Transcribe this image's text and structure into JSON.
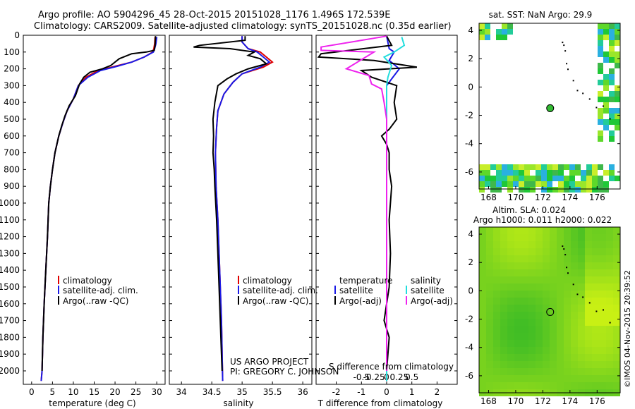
{
  "header": {
    "title_line1": "Argo profile: AO 5904296_45 28-Oct-2015 20151028_1176 1.496S 172.539E",
    "title_line2": "Climatology: CARS2009. Satellite-adjusted climatology: synTS_20151028.nc (0.35d earlier)"
  },
  "colors": {
    "climatology": "#e00000",
    "satellite": "#1a1ae6",
    "argo": "#000000",
    "sal_satellite": "#22dddd",
    "sal_argo": "#ee22ee"
  },
  "chart_data": [
    {
      "type": "line",
      "id": "temperature",
      "xlabel": "temperature (deg C)",
      "ylabel": "",
      "xlim": [
        -2,
        32
      ],
      "ylim": [
        2080,
        0
      ],
      "xticks": [
        0,
        5,
        10,
        15,
        20,
        25,
        30
      ],
      "xtick_labels": [
        "0",
        "5",
        "10",
        "15",
        "20",
        "25",
        "30"
      ],
      "yticks": [
        0,
        100,
        200,
        300,
        400,
        500,
        600,
        700,
        800,
        900,
        1000,
        1100,
        1200,
        1300,
        1400,
        1500,
        1600,
        1700,
        1800,
        1900,
        2000
      ],
      "ytick_labels": [
        "0",
        "100",
        "200",
        "300",
        "400",
        "500",
        "600",
        "700",
        "800",
        "900",
        "1000",
        "1100",
        "1200",
        "1300",
        "1400",
        "1500",
        "1600",
        "1700",
        "1800",
        "1900",
        "2000"
      ],
      "legend": [
        "climatology",
        "satellite-adj. clim.",
        "Argo(..raw -QC)"
      ],
      "legend_position": "lower-left",
      "series": [
        {
          "name": "climatology",
          "color_key": "climatology",
          "points": [
            [
              29.6,
              10
            ],
            [
              29.5,
              50
            ],
            [
              29.3,
              80
            ],
            [
              29.0,
              100
            ],
            [
              27,
              130
            ],
            [
              24,
              160
            ],
            [
              20,
              185
            ],
            [
              16,
              210
            ],
            [
              13,
              250
            ],
            [
              11.2,
              300
            ],
            [
              10,
              380
            ],
            [
              8.5,
              450
            ],
            [
              7.5,
              520
            ],
            [
              6.5,
              600
            ],
            [
              5.6,
              700
            ],
            [
              5,
              800
            ],
            [
              4.5,
              900
            ],
            [
              4.1,
              1000
            ],
            [
              3.8,
              1200
            ],
            [
              3.4,
              1400
            ],
            [
              3,
              1600
            ],
            [
              2.7,
              1800
            ],
            [
              2.5,
              2000
            ],
            [
              2.3,
              2060
            ]
          ]
        },
        {
          "name": "satellite-adj. clim.",
          "color_key": "satellite",
          "points": [
            [
              30.0,
              10
            ],
            [
              29.8,
              50
            ],
            [
              29.5,
              80
            ],
            [
              29.2,
              100
            ],
            [
              27,
              130
            ],
            [
              24,
              160
            ],
            [
              20.5,
              185
            ],
            [
              16.5,
              210
            ],
            [
              13.5,
              250
            ],
            [
              11.2,
              300
            ],
            [
              10,
              380
            ],
            [
              8.5,
              450
            ],
            [
              7.5,
              520
            ],
            [
              6.5,
              600
            ],
            [
              5.6,
              700
            ],
            [
              5,
              800
            ],
            [
              4.5,
              900
            ],
            [
              4.1,
              1000
            ],
            [
              3.8,
              1200
            ],
            [
              3.4,
              1400
            ],
            [
              3,
              1600
            ],
            [
              2.7,
              1800
            ],
            [
              2.5,
              2000
            ],
            [
              2.3,
              2060
            ]
          ]
        },
        {
          "name": "Argo(..raw -QC)",
          "color_key": "argo",
          "points": [
            [
              29.7,
              5
            ],
            [
              29.6,
              60
            ],
            [
              29.4,
              90
            ],
            [
              27.5,
              100
            ],
            [
              24,
              110
            ],
            [
              21,
              140
            ],
            [
              19,
              180
            ],
            [
              17,
              200
            ],
            [
              14,
              220
            ],
            [
              12.5,
              250
            ],
            [
              11.5,
              290
            ],
            [
              10.5,
              360
            ],
            [
              9,
              420
            ],
            [
              8,
              480
            ],
            [
              7.2,
              540
            ],
            [
              6.5,
              600
            ],
            [
              5.6,
              700
            ],
            [
              5,
              800
            ],
            [
              4.5,
              900
            ],
            [
              4.1,
              1000
            ],
            [
              3.8,
              1200
            ],
            [
              3.4,
              1400
            ],
            [
              3,
              1600
            ],
            [
              2.7,
              1800
            ],
            [
              2.5,
              2000
            ]
          ]
        }
      ]
    },
    {
      "type": "line",
      "id": "salinity",
      "xlabel": "salinity",
      "xlim": [
        33.8,
        36.15
      ],
      "ylim": [
        2080,
        0
      ],
      "xticks": [
        34,
        34.5,
        35,
        35.5,
        36
      ],
      "xtick_labels": [
        "34",
        "34.5",
        "35",
        "35.5",
        "36"
      ],
      "legend": [
        "climatology",
        "satellite-adj. clim.",
        "Argo(..raw -QC)"
      ],
      "legend_position": "lower-right",
      "series": [
        {
          "name": "climatology",
          "color_key": "climatology",
          "points": [
            [
              35.0,
              5
            ],
            [
              35.0,
              40
            ],
            [
              35.1,
              80
            ],
            [
              35.3,
              100
            ],
            [
              35.4,
              130
            ],
            [
              35.5,
              160
            ],
            [
              35.35,
              190
            ],
            [
              35.0,
              230
            ],
            [
              34.85,
              280
            ],
            [
              34.7,
              350
            ],
            [
              34.6,
              450
            ],
            [
              34.58,
              550
            ],
            [
              34.56,
              700
            ],
            [
              34.57,
              900
            ],
            [
              34.6,
              1100
            ],
            [
              34.62,
              1300
            ],
            [
              34.64,
              1500
            ],
            [
              34.66,
              1700
            ],
            [
              34.67,
              1900
            ],
            [
              34.68,
              2060
            ]
          ]
        },
        {
          "name": "satellite-adj. clim.",
          "color_key": "satellite",
          "points": [
            [
              35.0,
              5
            ],
            [
              35.0,
              40
            ],
            [
              35.1,
              80
            ],
            [
              35.25,
              100
            ],
            [
              35.35,
              130
            ],
            [
              35.45,
              160
            ],
            [
              35.3,
              190
            ],
            [
              35.0,
              230
            ],
            [
              34.85,
              280
            ],
            [
              34.7,
              350
            ],
            [
              34.6,
              450
            ],
            [
              34.58,
              550
            ],
            [
              34.56,
              700
            ],
            [
              34.57,
              900
            ],
            [
              34.6,
              1100
            ],
            [
              34.62,
              1300
            ],
            [
              34.64,
              1500
            ],
            [
              34.66,
              1700
            ],
            [
              34.67,
              1900
            ],
            [
              34.68,
              2060
            ]
          ]
        },
        {
          "name": "Argo(..raw -QC)",
          "color_key": "argo",
          "points": [
            [
              35.05,
              5
            ],
            [
              35.05,
              30
            ],
            [
              34.3,
              60
            ],
            [
              34.2,
              70
            ],
            [
              34.8,
              80
            ],
            [
              35.2,
              100
            ],
            [
              35.1,
              120
            ],
            [
              35.3,
              140
            ],
            [
              35.4,
              170
            ],
            [
              35.1,
              200
            ],
            [
              34.9,
              230
            ],
            [
              34.75,
              260
            ],
            [
              34.6,
              300
            ],
            [
              34.55,
              400
            ],
            [
              34.52,
              500
            ],
            [
              34.53,
              600
            ],
            [
              34.52,
              700
            ],
            [
              34.54,
              800
            ],
            [
              34.55,
              900
            ],
            [
              34.58,
              1100
            ],
            [
              34.6,
              1300
            ],
            [
              34.62,
              1500
            ],
            [
              34.64,
              1700
            ],
            [
              34.66,
              1900
            ],
            [
              34.67,
              2000
            ]
          ]
        }
      ]
    },
    {
      "type": "line",
      "id": "difference",
      "xlabel": "T difference from climatology",
      "xlabel_top": "S difference from climatology",
      "xlim": [
        -2.8,
        2.8
      ],
      "ylim": [
        2080,
        0
      ],
      "xticks": [
        -2,
        -1,
        0,
        1,
        2
      ],
      "xtick_labels": [
        "-2",
        "-1",
        "0",
        "1",
        "2"
      ],
      "xticks_top": [
        -1,
        -0.5,
        0,
        0.5,
        1
      ],
      "xtick_top_labels": [
        "-0.5",
        "-0.25",
        "0",
        "0.25",
        "0.5"
      ],
      "legend_titles": [
        "temperature",
        "salinity"
      ],
      "legend": [
        "satellite",
        "Argo(-adj)",
        "satellite",
        "Argo(-adj)"
      ],
      "legend_position": "lower-center",
      "series": [
        {
          "name": "temperature satellite",
          "color_key": "satellite",
          "points": [
            [
              0,
              5
            ],
            [
              0.1,
              80
            ],
            [
              0.3,
              100
            ],
            [
              0.1,
              150
            ],
            [
              0.5,
              200
            ],
            [
              0.2,
              260
            ],
            [
              0,
              300
            ],
            [
              0,
              600
            ],
            [
              0,
              1000
            ],
            [
              0,
              2060
            ]
          ]
        },
        {
          "name": "temperature Argo(-adj)",
          "color_key": "argo",
          "points": [
            [
              0,
              5
            ],
            [
              0.2,
              60
            ],
            [
              -2.6,
              110
            ],
            [
              -2.7,
              130
            ],
            [
              -0.5,
              150
            ],
            [
              1.2,
              190
            ],
            [
              -1,
              210
            ],
            [
              -0.6,
              250
            ],
            [
              0.4,
              300
            ],
            [
              0.3,
              400
            ],
            [
              0.4,
              500
            ],
            [
              0.1,
              560
            ],
            [
              -0.2,
              600
            ],
            [
              0,
              650
            ],
            [
              0.1,
              700
            ],
            [
              0.1,
              800
            ],
            [
              0.2,
              900
            ],
            [
              0.1,
              1100
            ],
            [
              0.15,
              1300
            ],
            [
              0.1,
              1500
            ],
            [
              0,
              1600
            ],
            [
              -0.1,
              1700
            ],
            [
              0.1,
              1800
            ],
            [
              0,
              2000
            ]
          ]
        },
        {
          "name": "salinity satellite",
          "color_key": "sal_satellite",
          "points": [
            [
              0.6,
              10
            ],
            [
              0.7,
              60
            ],
            [
              0.3,
              100
            ],
            [
              -0.1,
              130
            ],
            [
              0.2,
              180
            ],
            [
              0.05,
              250
            ],
            [
              0,
              300
            ],
            [
              0,
              600
            ],
            [
              0,
              1000
            ],
            [
              0,
              2060
            ]
          ]
        },
        {
          "name": "salinity Argo(-adj)",
          "color_key": "sal_argo",
          "points": [
            [
              0,
              5
            ],
            [
              -2.6,
              70
            ],
            [
              -2.6,
              90
            ],
            [
              -0.5,
              100
            ],
            [
              -1.6,
              200
            ],
            [
              -0.7,
              240
            ],
            [
              -0.6,
              290
            ],
            [
              -0.2,
              320
            ],
            [
              -0.1,
              400
            ],
            [
              0,
              500
            ],
            [
              0,
              1000
            ],
            [
              0,
              2000
            ]
          ]
        }
      ]
    },
    {
      "type": "heatmap",
      "id": "sst_map",
      "title": "sat. SST: NaN Argo: 29.9",
      "xlim": [
        167.3,
        177.7
      ],
      "ylim": [
        -7.2,
        4.5
      ],
      "xticks": [
        168,
        170,
        172,
        174,
        176
      ],
      "xtick_labels": [
        "168",
        "170",
        "172",
        "174",
        "176"
      ],
      "yticks": [
        4,
        2,
        0,
        -2,
        -4,
        -6
      ],
      "ytick_labels": [
        "4",
        "2",
        "0",
        "-2",
        "-4",
        "-6"
      ],
      "argo_position": [
        172.539,
        -1.496
      ]
    },
    {
      "type": "heatmap",
      "id": "sla_map",
      "title_line1": "Altim. SLA: 0.024",
      "title_line2": "Argo h1000: 0.011 h2000: 0.022",
      "xlim": [
        167.3,
        177.7
      ],
      "ylim": [
        -7.2,
        4.5
      ],
      "xticks": [
        168,
        170,
        172,
        174,
        176
      ],
      "xtick_labels": [
        "168",
        "170",
        "172",
        "174",
        "176"
      ],
      "yticks": [
        4,
        2,
        0,
        -2,
        -4,
        -6
      ],
      "ytick_labels": [
        "4",
        "2",
        "0",
        "-2",
        "-4",
        "-6"
      ],
      "argo_position": [
        172.539,
        -1.496
      ]
    }
  ],
  "annotations": {
    "project_line1": "US ARGO PROJECT",
    "project_line2": "PI: GREGORY C. JOHNSON",
    "credit": "©IMOS 04-Nov-2015 20:39:52"
  }
}
